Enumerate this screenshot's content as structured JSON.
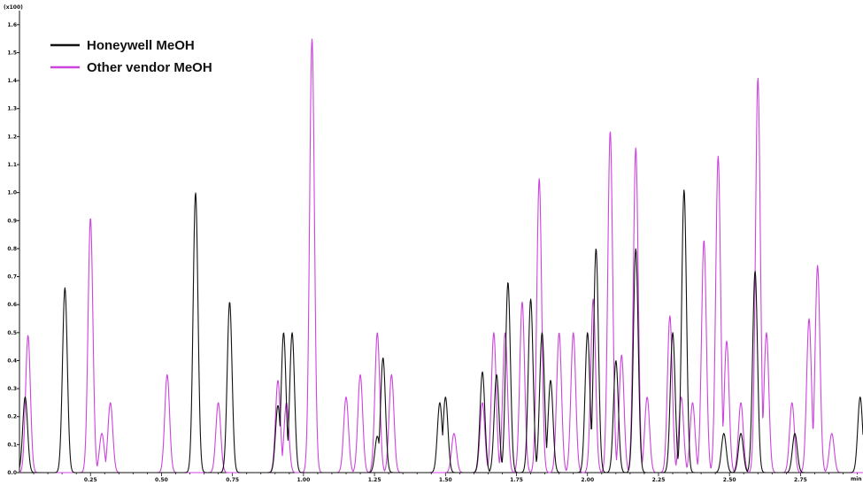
{
  "chart_data": {
    "type": "line",
    "title": "",
    "xlabel": "",
    "ylabel": "",
    "y_scale_label": "(x100)",
    "x_unit_label": "min",
    "xlim": [
      0.0,
      2.97
    ],
    "ylim": [
      0.0,
      1.65
    ],
    "x_ticks": [
      "0.25",
      "0.50",
      "0.75",
      "1.00",
      "1.25",
      "1.50",
      "1.75",
      "2.00",
      "2.25",
      "2.50",
      "2.75"
    ],
    "y_ticks": [
      "0.0",
      "0.1",
      "0.2",
      "0.3",
      "0.4",
      "0.5",
      "0.6",
      "0.7",
      "0.8",
      "0.9",
      "1.0",
      "1.1",
      "1.2",
      "1.3",
      "1.4",
      "1.5",
      "1.6"
    ],
    "grid": false,
    "legend_position": "top-left",
    "series": [
      {
        "name": "Honeywell MeOH",
        "color": "#111111",
        "peaks": [
          [
            0.02,
            0.27
          ],
          [
            0.16,
            0.66
          ],
          [
            0.62,
            1.0
          ],
          [
            0.74,
            0.61
          ],
          [
            0.91,
            0.24
          ],
          [
            0.93,
            0.5
          ],
          [
            0.96,
            0.5
          ],
          [
            1.26,
            0.13
          ],
          [
            1.28,
            0.41
          ],
          [
            1.48,
            0.25
          ],
          [
            1.5,
            0.27
          ],
          [
            1.63,
            0.36
          ],
          [
            1.68,
            0.35
          ],
          [
            1.72,
            0.68
          ],
          [
            1.8,
            0.62
          ],
          [
            1.84,
            0.5
          ],
          [
            1.87,
            0.33
          ],
          [
            2.0,
            0.5
          ],
          [
            2.03,
            0.8
          ],
          [
            2.1,
            0.4
          ],
          [
            2.17,
            0.8
          ],
          [
            2.3,
            0.5
          ],
          [
            2.34,
            1.01
          ],
          [
            2.48,
            0.14
          ],
          [
            2.54,
            0.14
          ],
          [
            2.59,
            0.72
          ],
          [
            2.73,
            0.14
          ],
          [
            2.96,
            0.27
          ]
        ]
      },
      {
        "name": "Other vendor MeOH",
        "color": "#cc44dd",
        "peaks": [
          [
            0.03,
            0.49
          ],
          [
            0.25,
            0.91
          ],
          [
            0.29,
            0.14
          ],
          [
            0.32,
            0.25
          ],
          [
            0.52,
            0.35
          ],
          [
            0.7,
            0.25
          ],
          [
            0.91,
            0.33
          ],
          [
            0.94,
            0.25
          ],
          [
            1.03,
            1.55
          ],
          [
            1.15,
            0.27
          ],
          [
            1.2,
            0.35
          ],
          [
            1.26,
            0.5
          ],
          [
            1.31,
            0.35
          ],
          [
            1.53,
            0.14
          ],
          [
            1.63,
            0.25
          ],
          [
            1.67,
            0.5
          ],
          [
            1.71,
            0.5
          ],
          [
            1.77,
            0.61
          ],
          [
            1.83,
            1.05
          ],
          [
            1.9,
            0.5
          ],
          [
            1.95,
            0.5
          ],
          [
            2.02,
            0.62
          ],
          [
            2.08,
            1.22
          ],
          [
            2.12,
            0.42
          ],
          [
            2.17,
            1.16
          ],
          [
            2.21,
            0.27
          ],
          [
            2.29,
            0.56
          ],
          [
            2.33,
            0.27
          ],
          [
            2.37,
            0.25
          ],
          [
            2.41,
            0.83
          ],
          [
            2.46,
            1.13
          ],
          [
            2.49,
            0.47
          ],
          [
            2.54,
            0.25
          ],
          [
            2.6,
            1.41
          ],
          [
            2.63,
            0.5
          ],
          [
            2.72,
            0.25
          ],
          [
            2.78,
            0.55
          ],
          [
            2.81,
            0.74
          ],
          [
            2.86,
            0.14
          ]
        ]
      }
    ]
  }
}
